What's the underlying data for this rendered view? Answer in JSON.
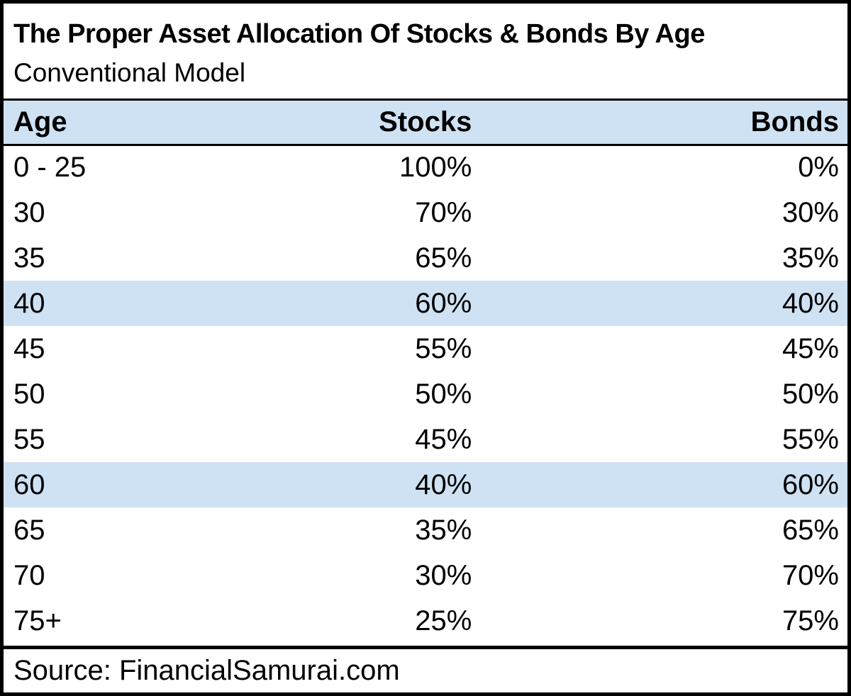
{
  "title": "The Proper Asset Allocation Of Stocks & Bonds By Age",
  "subtitle": "Conventional Model",
  "source_label": "Source: FinancialSamurai.com",
  "colors": {
    "header_bg": "#cfe2f3",
    "highlight_bg": "#cfe2f3",
    "border": "#000000",
    "text": "#000000",
    "background": "#ffffff"
  },
  "chart_data": {
    "type": "table",
    "title": "The Proper Asset Allocation Of Stocks & Bonds By Age",
    "subtitle": "Conventional Model",
    "columns": [
      "Age",
      "Stocks",
      "Bonds"
    ],
    "rows": [
      {
        "age": "0 - 25",
        "stocks": "100%",
        "bonds": "0%",
        "highlighted": false
      },
      {
        "age": "30",
        "stocks": "70%",
        "bonds": "30%",
        "highlighted": false
      },
      {
        "age": "35",
        "stocks": "65%",
        "bonds": "35%",
        "highlighted": false
      },
      {
        "age": "40",
        "stocks": "60%",
        "bonds": "40%",
        "highlighted": true
      },
      {
        "age": "45",
        "stocks": "55%",
        "bonds": "45%",
        "highlighted": false
      },
      {
        "age": "50",
        "stocks": "50%",
        "bonds": "50%",
        "highlighted": false
      },
      {
        "age": "55",
        "stocks": "45%",
        "bonds": "55%",
        "highlighted": false
      },
      {
        "age": "60",
        "stocks": "40%",
        "bonds": "60%",
        "highlighted": true
      },
      {
        "age": "65",
        "stocks": "35%",
        "bonds": "65%",
        "highlighted": false
      },
      {
        "age": "70",
        "stocks": "30%",
        "bonds": "70%",
        "highlighted": false
      },
      {
        "age": "75+",
        "stocks": "25%",
        "bonds": "75%",
        "highlighted": false
      }
    ],
    "source": "Source: FinancialSamurai.com",
    "layout": {
      "legend": "none",
      "grid": "off",
      "highlighted_rows": [
        "40",
        "60"
      ]
    }
  }
}
